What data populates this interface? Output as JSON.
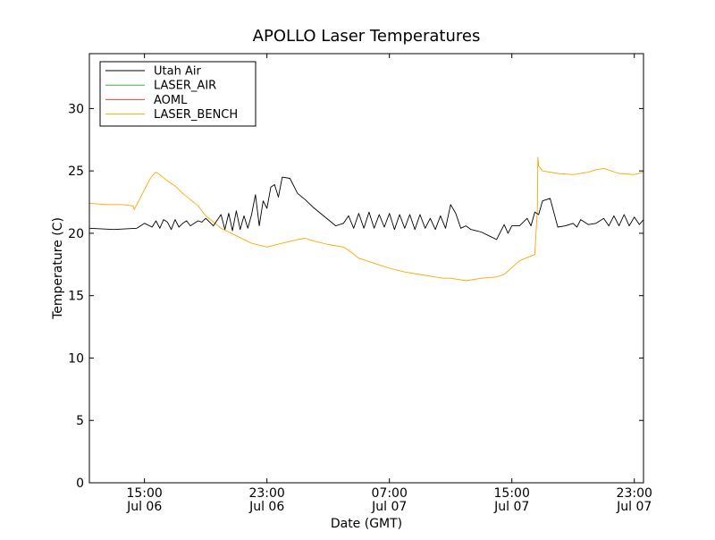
{
  "chart_data": {
    "type": "line",
    "title": "APOLLO Laser Temperatures",
    "xlabel": "Date (GMT)",
    "ylabel": "Temperature (C)",
    "ylim": [
      0,
      34.4
    ],
    "xlim": [
      "2008-07-06 11:24",
      "2008-07-07 23:36"
    ],
    "grid": false,
    "legend_position": "top-left",
    "x_ticks": [
      {
        "x": "2008-07-06 15:00",
        "line1": "15:00",
        "line2": "Jul 06"
      },
      {
        "x": "2008-07-06 23:00",
        "line1": "23:00",
        "line2": "Jul 06"
      },
      {
        "x": "2008-07-07 07:00",
        "line1": "07:00",
        "line2": "Jul 07"
      },
      {
        "x": "2008-07-07 15:00",
        "line1": "15:00",
        "line2": "Jul 07"
      },
      {
        "x": "2008-07-07 23:00",
        "line1": "23:00",
        "line2": "Jul 07"
      }
    ],
    "y_ticks": [
      0,
      5,
      10,
      15,
      20,
      25,
      30
    ],
    "series": [
      {
        "name": "Utah Air",
        "color": "#000000",
        "x": [
          "2008-07-06 11:24",
          "2008-07-06 13:00",
          "2008-07-06 14:30",
          "2008-07-06 15:00",
          "2008-07-06 15:30",
          "2008-07-06 15:45",
          "2008-07-06 16:00",
          "2008-07-06 16:15",
          "2008-07-06 16:30",
          "2008-07-06 16:45",
          "2008-07-06 17:00",
          "2008-07-06 17:15",
          "2008-07-06 17:30",
          "2008-07-06 17:45",
          "2008-07-06 18:00",
          "2008-07-06 18:30",
          "2008-07-06 18:45",
          "2008-07-06 19:00",
          "2008-07-06 19:30",
          "2008-07-06 20:00",
          "2008-07-06 20:15",
          "2008-07-06 20:30",
          "2008-07-06 20:45",
          "2008-07-06 21:00",
          "2008-07-06 21:15",
          "2008-07-06 21:30",
          "2008-07-06 21:45",
          "2008-07-06 22:00",
          "2008-07-06 22:15",
          "2008-07-06 22:30",
          "2008-07-06 22:45",
          "2008-07-06 23:00",
          "2008-07-06 23:15",
          "2008-07-06 23:30",
          "2008-07-06 23:45",
          "2008-07-07 00:00",
          "2008-07-07 00:30",
          "2008-07-07 01:00",
          "2008-07-07 01:30",
          "2008-07-07 02:00",
          "2008-07-07 02:30",
          "2008-07-07 03:00",
          "2008-07-07 03:30",
          "2008-07-07 04:00",
          "2008-07-07 04:20",
          "2008-07-07 04:40",
          "2008-07-07 05:00",
          "2008-07-07 05:20",
          "2008-07-07 05:40",
          "2008-07-07 06:00",
          "2008-07-07 06:20",
          "2008-07-07 06:40",
          "2008-07-07 07:00",
          "2008-07-07 07:20",
          "2008-07-07 07:40",
          "2008-07-07 08:00",
          "2008-07-07 08:20",
          "2008-07-07 08:40",
          "2008-07-07 09:00",
          "2008-07-07 09:20",
          "2008-07-07 09:40",
          "2008-07-07 10:00",
          "2008-07-07 10:20",
          "2008-07-07 10:40",
          "2008-07-07 11:00",
          "2008-07-07 11:20",
          "2008-07-07 11:40",
          "2008-07-07 12:00",
          "2008-07-07 12:20",
          "2008-07-07 12:40",
          "2008-07-07 13:00",
          "2008-07-07 13:30",
          "2008-07-07 14:00",
          "2008-07-07 14:30",
          "2008-07-07 14:45",
          "2008-07-07 15:00",
          "2008-07-07 15:30",
          "2008-07-07 16:00",
          "2008-07-07 16:15",
          "2008-07-07 16:30",
          "2008-07-07 16:45",
          "2008-07-07 17:00",
          "2008-07-07 17:30",
          "2008-07-07 18:00",
          "2008-07-07 18:30",
          "2008-07-07 19:00",
          "2008-07-07 19:15",
          "2008-07-07 19:30",
          "2008-07-07 20:00",
          "2008-07-07 20:30",
          "2008-07-07 21:00",
          "2008-07-07 21:20",
          "2008-07-07 21:40",
          "2008-07-07 22:00",
          "2008-07-07 22:20",
          "2008-07-07 22:40",
          "2008-07-07 23:00",
          "2008-07-07 23:20",
          "2008-07-07 23:36"
        ],
        "y": [
          20.4,
          20.3,
          20.4,
          20.8,
          20.5,
          21.0,
          20.4,
          21.1,
          20.9,
          20.3,
          21.1,
          20.5,
          20.8,
          21.0,
          20.6,
          21.0,
          20.9,
          21.2,
          20.6,
          21.5,
          20.3,
          21.6,
          20.2,
          21.8,
          20.3,
          21.4,
          20.4,
          21.5,
          23.1,
          20.6,
          22.6,
          22.0,
          23.7,
          23.9,
          22.9,
          24.5,
          24.4,
          23.2,
          22.7,
          22.1,
          21.6,
          21.1,
          20.6,
          20.8,
          21.4,
          20.4,
          21.6,
          20.4,
          21.7,
          20.4,
          21.5,
          20.5,
          21.6,
          20.3,
          21.5,
          20.4,
          21.5,
          20.3,
          21.5,
          20.4,
          21.2,
          20.3,
          21.4,
          20.4,
          22.3,
          21.6,
          20.4,
          20.6,
          20.3,
          20.2,
          20.1,
          19.8,
          19.5,
          20.7,
          20.0,
          20.6,
          20.6,
          21.2,
          20.6,
          21.7,
          21.5,
          22.6,
          22.8,
          20.5,
          20.6,
          20.8,
          20.5,
          21.1,
          20.7,
          20.8,
          21.2,
          20.6,
          21.4,
          20.6,
          21.5,
          20.6,
          21.3,
          20.7,
          21.1
        ]
      },
      {
        "name": "LASER_AIR",
        "color": "#3cb043",
        "x": [],
        "y": []
      },
      {
        "name": "AOML",
        "color": "#e8403c",
        "x": [],
        "y": []
      },
      {
        "name": "LASER_BENCH",
        "color": "#ffa500",
        "x": [
          "2008-07-06 11:24",
          "2008-07-06 12:30",
          "2008-07-06 13:30",
          "2008-07-06 14:15",
          "2008-07-06 14:20",
          "2008-07-06 14:30",
          "2008-07-06 15:00",
          "2008-07-06 15:20",
          "2008-07-06 15:30",
          "2008-07-06 15:45",
          "2008-07-06 16:00",
          "2008-07-06 16:30",
          "2008-07-06 17:00",
          "2008-07-06 17:30",
          "2008-07-06 18:00",
          "2008-07-06 18:30",
          "2008-07-06 19:00",
          "2008-07-06 20:00",
          "2008-07-06 21:00",
          "2008-07-06 22:00",
          "2008-07-06 23:00",
          "2008-07-07 00:00",
          "2008-07-07 01:00",
          "2008-07-07 01:30",
          "2008-07-07 02:00",
          "2008-07-07 03:00",
          "2008-07-07 04:00",
          "2008-07-07 04:30",
          "2008-07-07 05:00",
          "2008-07-07 06:00",
          "2008-07-07 07:00",
          "2008-07-07 08:00",
          "2008-07-07 09:00",
          "2008-07-07 10:00",
          "2008-07-07 10:30",
          "2008-07-07 11:00",
          "2008-07-07 12:00",
          "2008-07-07 13:00",
          "2008-07-07 14:00",
          "2008-07-07 14:30",
          "2008-07-07 15:30",
          "2008-07-07 16:30",
          "2008-07-07 16:40",
          "2008-07-07 16:42",
          "2008-07-07 16:45",
          "2008-07-07 17:00",
          "2008-07-07 18:00",
          "2008-07-07 19:00",
          "2008-07-07 20:00",
          "2008-07-07 20:30",
          "2008-07-07 21:00",
          "2008-07-07 22:00",
          "2008-07-07 23:00",
          "2008-07-07 23:36"
        ],
        "y": [
          22.4,
          22.3,
          22.3,
          22.2,
          21.9,
          22.3,
          23.5,
          24.3,
          24.6,
          24.9,
          24.7,
          24.2,
          23.8,
          23.2,
          22.7,
          22.2,
          21.4,
          20.4,
          19.8,
          19.2,
          18.9,
          19.2,
          19.5,
          19.6,
          19.4,
          19.1,
          18.9,
          18.5,
          18.0,
          17.6,
          17.2,
          16.9,
          16.7,
          16.5,
          16.4,
          16.4,
          16.2,
          16.4,
          16.5,
          16.7,
          17.8,
          18.3,
          22.0,
          26.1,
          25.4,
          25.0,
          24.8,
          24.7,
          24.9,
          25.1,
          25.2,
          24.8,
          24.7,
          24.9
        ]
      }
    ]
  }
}
